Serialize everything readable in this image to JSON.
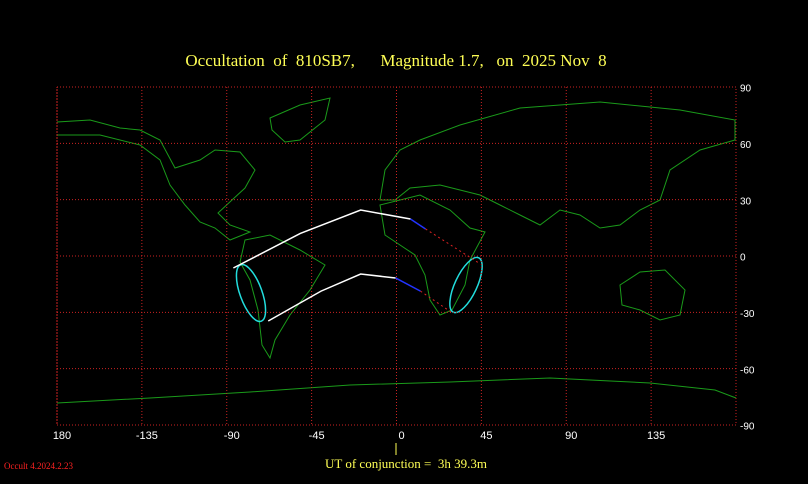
{
  "chart_data": {
    "type": "map",
    "title": "Occultation  of  810SB7,      Magnitude 1.7,   on  2025 Nov  8",
    "footer": "UT of conjunction =  3h 39.3m",
    "version": "Occult 4.2024.2.23",
    "xlim": [
      -180,
      180
    ],
    "xticks": [
      {
        "value": -180,
        "label": "180"
      },
      -135,
      -90,
      -45,
      0,
      45,
      90,
      135
    ],
    "ylim": [
      -90,
      90
    ],
    "yticks": [
      90,
      60,
      30,
      0,
      -30,
      -60,
      -90
    ],
    "grid": true,
    "grid_color": "#cc2222",
    "series": [
      {
        "color": "#ffffff",
        "x": [
          -86.5,
          -51,
          -19,
          7.4
        ],
        "y": [
          -6.4,
          12,
          24.5,
          19.7
        ]
      },
      {
        "color": "#2233ff",
        "x": [
          7.4,
          15.4
        ],
        "y": [
          19.7,
          14.4
        ]
      },
      {
        "color": "#dd2222",
        "dashed": true,
        "x": [
          15.4,
          43.6
        ],
        "y": [
          14.4,
          -3.7
        ]
      },
      {
        "color": "#ffffff",
        "x": [
          -68,
          -40,
          -19,
          -0.5
        ],
        "y": [
          -34.6,
          -18.7,
          -9.6,
          -11.7
        ]
      },
      {
        "color": "#2233ff",
        "x": [
          -0.5,
          12.7
        ],
        "y": [
          -11.7,
          -18.7
        ]
      },
      {
        "color": "#dd2222",
        "dashed": true,
        "x": [
          12.7,
          29.7
        ],
        "y": [
          -18.7,
          -30.4
        ]
      }
    ]
  }
}
